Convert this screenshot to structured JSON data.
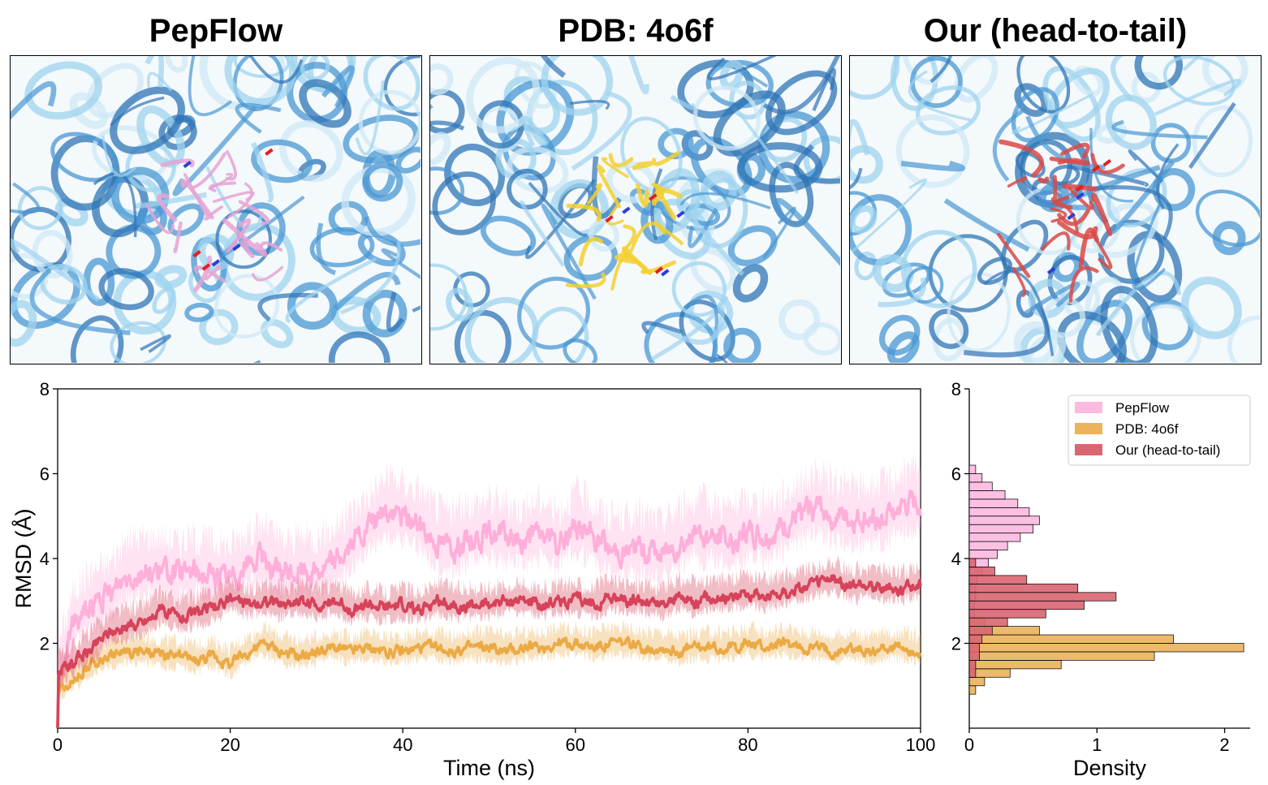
{
  "panels": [
    {
      "title": "PepFlow",
      "peptide_color": "#e6a3d3"
    },
    {
      "title": "PDB: 4o6f",
      "peptide_color": "#f3d02f"
    },
    {
      "title": "Our (head-to-tail)",
      "peptide_color": "#d94a45"
    }
  ],
  "colors": {
    "protein_dark": "#2f74b6",
    "protein_mid": "#4a97d3",
    "protein_light": "#9fd3ef",
    "protein_pale": "#cfe8f6",
    "nitrogen": "#2b3fd6",
    "oxygen": "#e31f1f"
  },
  "chart_data": [
    {
      "type": "line",
      "title": "",
      "xlabel": "Time (ns)",
      "ylabel": "RMSD (Å)",
      "xlim": [
        0,
        100
      ],
      "ylim": [
        0,
        8
      ],
      "xticks": [
        0,
        20,
        40,
        60,
        80,
        100
      ],
      "yticks": [
        2,
        4,
        6,
        8
      ],
      "series": [
        {
          "name": "PepFlow",
          "color": "#ffafd9",
          "x": [
            0,
            2,
            4,
            6,
            8,
            10,
            12,
            14,
            16,
            18,
            20,
            22,
            24,
            26,
            28,
            30,
            32,
            34,
            36,
            38,
            40,
            42,
            44,
            46,
            48,
            50,
            52,
            54,
            56,
            58,
            60,
            62,
            64,
            66,
            68,
            70,
            72,
            74,
            76,
            78,
            80,
            82,
            84,
            86,
            88,
            90,
            92,
            94,
            96,
            98,
            100
          ],
          "values": [
            1.2,
            2.5,
            2.9,
            3.1,
            3.6,
            3.7,
            3.7,
            3.6,
            3.7,
            3.6,
            3.5,
            3.9,
            4.0,
            3.6,
            3.7,
            3.7,
            3.9,
            4.3,
            4.7,
            5.1,
            5.0,
            4.8,
            4.4,
            4.3,
            4.5,
            4.6,
            4.5,
            4.4,
            4.6,
            4.3,
            4.8,
            4.5,
            4.2,
            4.2,
            4.2,
            4.1,
            4.4,
            4.6,
            4.5,
            4.4,
            4.6,
            4.5,
            4.7,
            5.0,
            5.2,
            5.0,
            4.9,
            4.9,
            5.0,
            5.2,
            5.3
          ],
          "band_width": 1.0
        },
        {
          "name": "PDB: 4o6f",
          "color": "#ebaa44",
          "x": [
            0,
            2,
            4,
            6,
            8,
            10,
            12,
            14,
            16,
            18,
            20,
            22,
            24,
            26,
            28,
            30,
            32,
            34,
            36,
            38,
            40,
            42,
            44,
            46,
            48,
            50,
            52,
            54,
            56,
            58,
            60,
            62,
            64,
            66,
            68,
            70,
            72,
            74,
            76,
            78,
            80,
            82,
            84,
            86,
            88,
            90,
            92,
            94,
            96,
            98,
            100
          ],
          "values": [
            0.9,
            1.2,
            1.5,
            1.7,
            1.8,
            1.8,
            1.7,
            1.7,
            1.6,
            1.7,
            1.5,
            1.8,
            2.0,
            1.8,
            1.7,
            1.8,
            1.9,
            1.8,
            1.9,
            1.8,
            1.8,
            1.9,
            1.9,
            1.8,
            1.9,
            1.9,
            1.8,
            1.9,
            1.9,
            2.0,
            2.0,
            1.9,
            2.0,
            2.0,
            1.9,
            1.9,
            1.8,
            1.9,
            1.9,
            1.9,
            2.0,
            1.9,
            2.0,
            1.9,
            1.9,
            1.8,
            1.9,
            1.8,
            1.9,
            1.9,
            1.8
          ],
          "band_width": 0.45
        },
        {
          "name": "Our (head-to-tail)",
          "color": "#d6435a",
          "x": [
            0,
            2,
            4,
            6,
            8,
            10,
            12,
            14,
            16,
            18,
            20,
            22,
            24,
            26,
            28,
            30,
            32,
            34,
            36,
            38,
            40,
            42,
            44,
            46,
            48,
            50,
            52,
            54,
            56,
            58,
            60,
            62,
            64,
            66,
            68,
            70,
            72,
            74,
            76,
            78,
            80,
            82,
            84,
            86,
            88,
            90,
            92,
            94,
            96,
            98,
            100
          ],
          "values": [
            1.3,
            1.6,
            1.9,
            2.3,
            2.4,
            2.5,
            2.8,
            2.6,
            2.7,
            2.8,
            3.1,
            2.9,
            3.0,
            2.9,
            3.0,
            2.9,
            3.0,
            2.8,
            2.9,
            2.8,
            2.9,
            2.8,
            3.0,
            2.9,
            2.9,
            2.9,
            3.0,
            3.0,
            2.9,
            3.0,
            3.0,
            2.9,
            3.1,
            3.0,
            3.0,
            2.9,
            3.1,
            3.0,
            3.1,
            3.1,
            3.2,
            3.1,
            3.2,
            3.3,
            3.4,
            3.5,
            3.3,
            3.4,
            3.3,
            3.3,
            3.4
          ],
          "band_width": 0.5
        }
      ]
    },
    {
      "type": "histogram",
      "title": "",
      "xlabel": "Density",
      "ylabel": "",
      "xlim": [
        0,
        2.2
      ],
      "ylim": [
        0,
        8
      ],
      "xticks": [
        0,
        1,
        2
      ],
      "yticks": [
        2,
        4,
        6,
        8
      ],
      "orientation": "horizontal",
      "legend_position": "top-right",
      "series": [
        {
          "name": "PepFlow",
          "color": "#fdbae0",
          "bins": [
            1.0,
            1.4,
            1.8,
            2.2,
            2.6,
            3.0,
            3.4,
            3.6,
            3.8,
            4.0,
            4.2,
            4.4,
            4.6,
            4.8,
            5.0,
            5.2,
            5.4,
            5.6,
            5.8,
            6.0,
            6.2
          ],
          "density": [
            0.01,
            0.02,
            0.03,
            0.04,
            0.04,
            0.05,
            0.06,
            0.1,
            0.15,
            0.22,
            0.3,
            0.4,
            0.5,
            0.55,
            0.47,
            0.38,
            0.28,
            0.18,
            0.1,
            0.05
          ]
        },
        {
          "name": "PDB: 4o6f",
          "color": "#ecb35b",
          "bins": [
            0.8,
            1.0,
            1.2,
            1.4,
            1.6,
            1.8,
            2.0,
            2.2,
            2.4,
            2.6
          ],
          "density": [
            0.05,
            0.12,
            0.32,
            0.72,
            1.45,
            2.15,
            1.6,
            0.55,
            0.12
          ]
        },
        {
          "name": "Our (head-to-tail)",
          "color": "#db6672",
          "bins": [
            1.2,
            1.6,
            2.0,
            2.2,
            2.4,
            2.6,
            2.8,
            3.0,
            3.2,
            3.4,
            3.6,
            3.8,
            4.0
          ],
          "density": [
            0.05,
            0.08,
            0.1,
            0.18,
            0.3,
            0.6,
            0.9,
            1.15,
            0.85,
            0.45,
            0.2,
            0.05
          ]
        }
      ]
    }
  ]
}
